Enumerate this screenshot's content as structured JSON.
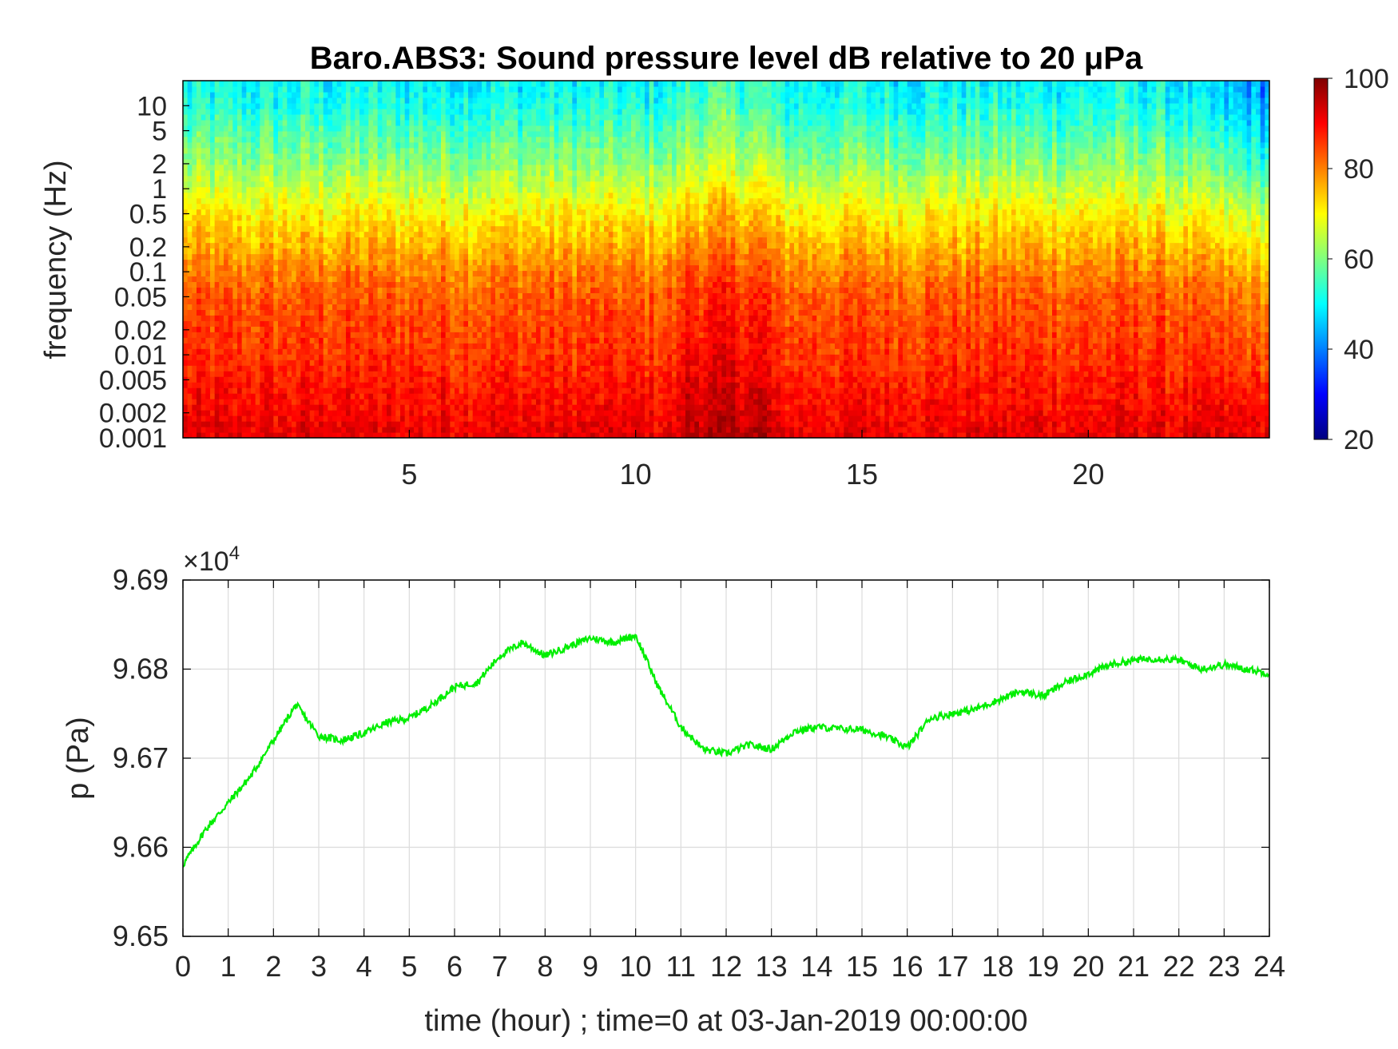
{
  "chart_data": [
    {
      "type": "heatmap",
      "title": "Baro.ABS3: Sound pressure level dB relative to 20 μPa",
      "ylabel": "frequency (Hz)",
      "xlabel": "",
      "x_range": [
        0,
        24
      ],
      "x_ticks": [
        5,
        10,
        15,
        20
      ],
      "y_scale": "log",
      "y_range": [
        0.001,
        20
      ],
      "y_ticks": [
        0.001,
        0.002,
        0.005,
        0.01,
        0.02,
        0.05,
        0.1,
        0.2,
        0.5,
        1,
        2,
        5,
        10
      ],
      "y_tick_labels": [
        "0.001",
        "0.002",
        "0.005",
        "0.01",
        "0.02",
        "0.05",
        "0.1",
        "0.2",
        "0.5",
        "1",
        "2",
        "5",
        "10"
      ],
      "colorbar": {
        "range": [
          20,
          100
        ],
        "ticks": [
          "20",
          "40",
          "60",
          "80",
          "100"
        ],
        "colormap": "jet",
        "position": "right"
      },
      "value_profile_by_frequency": [
        {
          "f": 0.001,
          "db": 92
        },
        {
          "f": 0.002,
          "db": 90
        },
        {
          "f": 0.005,
          "db": 88
        },
        {
          "f": 0.01,
          "db": 86
        },
        {
          "f": 0.02,
          "db": 85
        },
        {
          "f": 0.05,
          "db": 83
        },
        {
          "f": 0.1,
          "db": 80
        },
        {
          "f": 0.2,
          "db": 76
        },
        {
          "f": 0.5,
          "db": 71
        },
        {
          "f": 1,
          "db": 66
        },
        {
          "f": 2,
          "db": 61
        },
        {
          "f": 5,
          "db": 56
        },
        {
          "f": 10,
          "db": 52
        },
        {
          "f": 20,
          "db": 50
        }
      ]
    },
    {
      "type": "line",
      "title": "",
      "xlabel": "time (hour) ; time=0 at 03-Jan-2019 00:00:00",
      "ylabel": "p (Pa)",
      "x_range": [
        0,
        24
      ],
      "x_ticks": [
        "0",
        "1",
        "2",
        "3",
        "4",
        "5",
        "6",
        "7",
        "8",
        "9",
        "10",
        "11",
        "12",
        "13",
        "14",
        "15",
        "16",
        "17",
        "18",
        "19",
        "20",
        "21",
        "22",
        "23",
        "24"
      ],
      "y_range": [
        96500,
        96900
      ],
      "y_tick_labels": [
        "9.65",
        "9.66",
        "9.67",
        "9.68",
        "9.69"
      ],
      "y_multiplier_label": "×10",
      "y_multiplier_exp": "4",
      "grid": true,
      "series": [
        {
          "color": "#00ee00",
          "x": [
            0,
            0.5,
            1,
            1.5,
            2,
            2.5,
            3,
            3.5,
            4,
            4.5,
            5,
            5.5,
            6,
            6.5,
            7,
            7.5,
            8,
            8.5,
            9,
            9.5,
            10,
            10.5,
            11,
            11.5,
            12,
            12.5,
            13,
            13.5,
            14,
            14.5,
            15,
            15.5,
            16,
            16.5,
            17,
            17.5,
            18,
            18.5,
            19,
            19.5,
            20,
            20.5,
            21,
            21.5,
            22,
            22.5,
            23,
            23.5,
            24
          ],
          "y": [
            96580,
            96620,
            96650,
            96680,
            96720,
            96760,
            96725,
            96720,
            96728,
            96740,
            96745,
            96760,
            96780,
            96785,
            96815,
            96830,
            96815,
            96825,
            96835,
            96830,
            96838,
            96780,
            96735,
            96710,
            96705,
            96715,
            96710,
            96730,
            96735,
            96733,
            96732,
            96725,
            96712,
            96745,
            96750,
            96755,
            96765,
            96775,
            96770,
            96785,
            96795,
            96805,
            96810,
            96812,
            96810,
            96800,
            96805,
            96800,
            96795
          ]
        }
      ]
    }
  ]
}
